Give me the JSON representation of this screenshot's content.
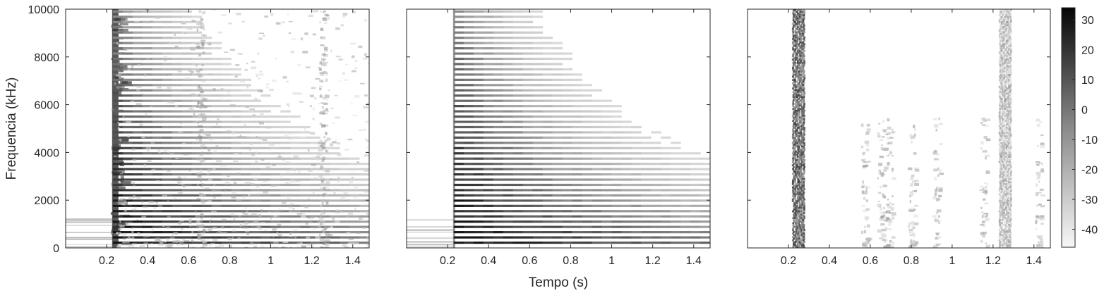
{
  "chart_data": [
    {
      "type": "heatmap",
      "panel": "left",
      "xlabel": "",
      "ylabel": "Frequencia (kHz)",
      "xlim": [
        0,
        1.48
      ],
      "ylim": [
        0,
        10000
      ],
      "xticks": [
        0.2,
        0.4,
        0.6,
        0.8,
        1,
        1.2,
        1.4
      ],
      "xtick_labels": [
        "0.2",
        "0.4",
        "0.6",
        "0.8",
        "1",
        "1.2",
        "1.4"
      ],
      "yticks": [
        0,
        2000,
        4000,
        6000,
        8000,
        10000
      ],
      "ytick_labels": [
        "0",
        "2000",
        "4000",
        "6000",
        "8000",
        "10000"
      ],
      "colormap": "gray (white = low, black = high)",
      "onset_time_s": 0.23,
      "fundamental_hz": 220,
      "harmonic_decay": "fast high-frequency decay over time",
      "noise_bursts_s": [
        0.23,
        0.65,
        1.25
      ],
      "background_noise": "strong",
      "grid": false
    },
    {
      "type": "heatmap",
      "panel": "middle",
      "xlabel": "Tempo (s)",
      "ylabel": "",
      "xlim": [
        0,
        1.48
      ],
      "ylim": [
        0,
        10000
      ],
      "xticks": [
        0.2,
        0.4,
        0.6,
        0.8,
        1,
        1.2,
        1.4
      ],
      "xtick_labels": [
        "0.2",
        "0.4",
        "0.6",
        "0.8",
        "1",
        "1.2",
        "1.4"
      ],
      "yticks": [
        0,
        2000,
        4000,
        6000,
        8000,
        10000
      ],
      "colormap": "gray (white = low, black = high)",
      "onset_time_s": 0.23,
      "fundamental_hz": 220,
      "harmonic_decay": "fast high-frequency decay over time",
      "noise_bursts_s": [],
      "background_noise": "weak",
      "grid": false
    },
    {
      "type": "heatmap",
      "panel": "right",
      "xlabel": "",
      "ylabel": "",
      "xlim": [
        0,
        1.48
      ],
      "ylim": [
        0,
        10000
      ],
      "xticks": [
        0.2,
        0.4,
        0.6,
        0.8,
        1,
        1.2,
        1.4
      ],
      "xtick_labels": [
        "0.2",
        "0.4",
        "0.6",
        "0.8",
        "1",
        "1.2",
        "1.4"
      ],
      "yticks": [
        0,
        2000,
        4000,
        6000,
        8000,
        10000
      ],
      "colormap": "gray (white = low, black = high)",
      "vertical_bands_s": [
        0.25,
        1.26
      ],
      "faint_bands_s": [
        0.57,
        0.65,
        0.69,
        0.8,
        0.92,
        1.15,
        1.42
      ],
      "colorbar": {
        "range": [
          -46,
          34
        ],
        "ticks": [
          -40,
          -30,
          -20,
          -10,
          0,
          10,
          20,
          30
        ],
        "tick_labels": [
          "-40",
          "-30",
          "-20",
          "-10",
          "0",
          "10",
          "20",
          "30"
        ]
      },
      "grid": false
    }
  ]
}
